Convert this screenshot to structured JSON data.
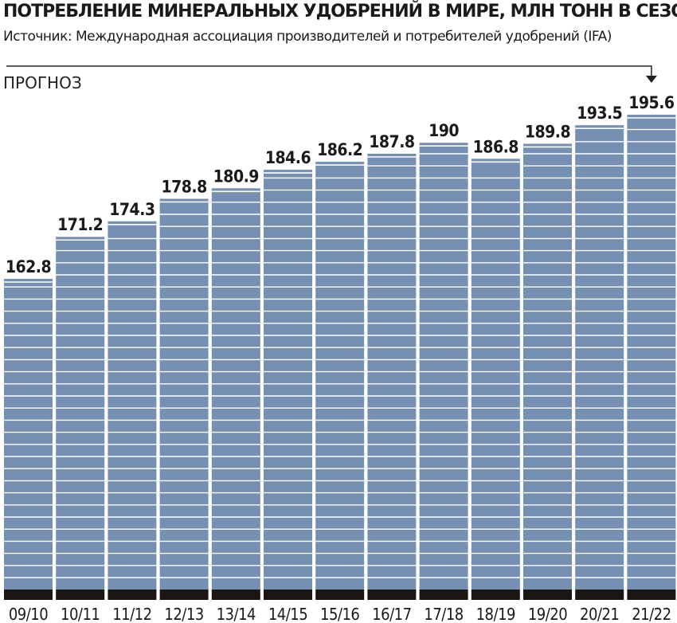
{
  "header": {
    "title": "ПОТРЕБЛЕНИЕ МИНЕРАЛЬНЫХ УДОБРЕНИЙ В МИРЕ, МЛН  ТОНН  В СЕЗОН",
    "subtitle": "Источник: Международная ассоциация производителей и потребителей удобрений (IFA)",
    "forecast_label": "ПРОГНОЗ"
  },
  "colors": {
    "bar": "#7590b3",
    "bar_stripe": "#ffffff",
    "bar_base": "#1a1614",
    "text": "#1a1a1a"
  },
  "chart_data": {
    "type": "bar",
    "categories": [
      "09/10",
      "10/11",
      "11/12",
      "12/13",
      "13/14",
      "14/15",
      "15/16",
      "16/17",
      "17/18",
      "18/19",
      "19/20",
      "20/21",
      "21/22"
    ],
    "values": [
      162.8,
      171.2,
      174.3,
      178.8,
      180.9,
      184.6,
      186.2,
      187.8,
      190,
      186.8,
      189.8,
      193.5,
      195.6
    ],
    "value_labels": [
      "162.8",
      "171.2",
      "174.3",
      "178.8",
      "180.9",
      "184.6",
      "186.2",
      "187.8",
      "190",
      "186.8",
      "189.8",
      "193.5",
      "195.6"
    ],
    "title": "ПОТРЕБЛЕНИЕ МИНЕРАЛЬНЫХ УДОБРЕНИЙ В МИРЕ, МЛН  ТОНН  В СЕЗОН",
    "xlabel": "",
    "ylabel": "",
    "forecast_category": "21/22",
    "grid": false,
    "legend": "none"
  }
}
